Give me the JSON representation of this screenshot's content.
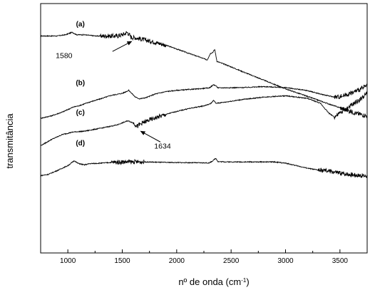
{
  "chart_data": {
    "type": "line",
    "xlabel": "nº de onda (cm",
    "xlabel_sup": "-1",
    "xlabel_end": ")",
    "ylabel": "transmitância",
    "xlim": [
      750,
      3750
    ],
    "ylim": [
      0,
      100
    ],
    "xticks": [
      1000,
      1500,
      2000,
      2500,
      3000,
      3500
    ],
    "xtick_labels": [
      "1000",
      "1500",
      "2000",
      "2500",
      "3000",
      "3500"
    ],
    "grid": false,
    "series": [
      {
        "name": "(a)",
        "points": [
          [
            750,
            87
          ],
          [
            800,
            87
          ],
          [
            900,
            87
          ],
          [
            980,
            87.5
          ],
          [
            1040,
            88.5
          ],
          [
            1080,
            87.5
          ],
          [
            1150,
            87.5
          ],
          [
            1250,
            87
          ],
          [
            1350,
            87
          ],
          [
            1450,
            87
          ],
          [
            1520,
            87.8
          ],
          [
            1545,
            88.5
          ],
          [
            1565,
            87.5
          ],
          [
            1580,
            86.5
          ],
          [
            1620,
            86.3
          ],
          [
            1700,
            85.5
          ],
          [
            1800,
            84.5
          ],
          [
            1900,
            83.3
          ],
          [
            2000,
            81.8
          ],
          [
            2100,
            80.2
          ],
          [
            2200,
            78.7
          ],
          [
            2280,
            77.4
          ],
          [
            2310,
            80
          ],
          [
            2330,
            80.4
          ],
          [
            2350,
            81.6
          ],
          [
            2370,
            76.8
          ],
          [
            2450,
            75.5
          ],
          [
            2600,
            72.8
          ],
          [
            2800,
            69.3
          ],
          [
            3000,
            65.8
          ],
          [
            3200,
            62.8
          ],
          [
            3400,
            59.7
          ],
          [
            3550,
            57.5
          ],
          [
            3650,
            56
          ],
          [
            3750,
            55
          ]
        ],
        "noise_ranges": [
          [
            1300,
            1650
          ],
          [
            1650,
            1900
          ],
          [
            3500,
            3750
          ]
        ],
        "label_x": 1115,
        "label_y": 90.8
      },
      {
        "name": "(b)",
        "points": [
          [
            750,
            54
          ],
          [
            850,
            55
          ],
          [
            950,
            56.5
          ],
          [
            1050,
            58.5
          ],
          [
            1100,
            59
          ],
          [
            1200,
            60.5
          ],
          [
            1300,
            61.8
          ],
          [
            1400,
            63.2
          ],
          [
            1500,
            64
          ],
          [
            1560,
            65.2
          ],
          [
            1580,
            64.3
          ],
          [
            1620,
            62.5
          ],
          [
            1660,
            61.8
          ],
          [
            1720,
            62.3
          ],
          [
            1800,
            63.7
          ],
          [
            1900,
            64.7
          ],
          [
            2000,
            65.2
          ],
          [
            2200,
            65.8
          ],
          [
            2300,
            66.2
          ],
          [
            2340,
            67.5
          ],
          [
            2360,
            67
          ],
          [
            2380,
            66.2
          ],
          [
            2600,
            66.3
          ],
          [
            2800,
            66.7
          ],
          [
            3000,
            66.3
          ],
          [
            3200,
            65.1
          ],
          [
            3350,
            63.4
          ],
          [
            3450,
            62.5
          ],
          [
            3500,
            62.7
          ],
          [
            3600,
            64
          ],
          [
            3700,
            66
          ],
          [
            3750,
            67
          ]
        ],
        "noise_ranges": [
          [
            3450,
            3750
          ]
        ],
        "label_x": 1115,
        "label_y": 67.3
      },
      {
        "name": "(c)",
        "points": [
          [
            750,
            43
          ],
          [
            850,
            45.5
          ],
          [
            950,
            47.5
          ],
          [
            1050,
            48.5
          ],
          [
            1150,
            48.8
          ],
          [
            1300,
            50
          ],
          [
            1450,
            51.3
          ],
          [
            1550,
            53
          ],
          [
            1600,
            52.2
          ],
          [
            1640,
            50.8
          ],
          [
            1680,
            52
          ],
          [
            1750,
            53.3
          ],
          [
            1850,
            54.8
          ],
          [
            1950,
            56.2
          ],
          [
            2100,
            57.8
          ],
          [
            2250,
            59
          ],
          [
            2310,
            59.8
          ],
          [
            2340,
            61.2
          ],
          [
            2360,
            60
          ],
          [
            2450,
            60.5
          ],
          [
            2600,
            61.5
          ],
          [
            2800,
            62.5
          ],
          [
            3000,
            63
          ],
          [
            3200,
            62
          ],
          [
            3320,
            60
          ],
          [
            3400,
            56
          ],
          [
            3450,
            54.5
          ],
          [
            3500,
            56
          ],
          [
            3600,
            59
          ],
          [
            3700,
            62
          ],
          [
            3750,
            64
          ]
        ],
        "noise_ranges": [
          [
            1600,
            1900
          ],
          [
            3450,
            3750
          ]
        ],
        "label_x": 1115,
        "label_y": 55.5
      },
      {
        "name": "(d)",
        "points": [
          [
            750,
            31
          ],
          [
            820,
            31.5
          ],
          [
            900,
            33
          ],
          [
            1000,
            35
          ],
          [
            1060,
            37
          ],
          [
            1090,
            36
          ],
          [
            1150,
            35.3
          ],
          [
            1200,
            35.8
          ],
          [
            1300,
            36
          ],
          [
            1400,
            36.3
          ],
          [
            1500,
            36.5
          ],
          [
            1700,
            36.5
          ],
          [
            1900,
            36.3
          ],
          [
            2100,
            36.2
          ],
          [
            2300,
            36.1
          ],
          [
            2330,
            36.9
          ],
          [
            2360,
            38
          ],
          [
            2380,
            36.6
          ],
          [
            2500,
            36.5
          ],
          [
            2700,
            36.5
          ],
          [
            2900,
            36.5
          ],
          [
            3000,
            36
          ],
          [
            3100,
            35
          ],
          [
            3200,
            34
          ],
          [
            3300,
            33.2
          ],
          [
            3400,
            32.8
          ],
          [
            3500,
            32
          ],
          [
            3650,
            31.2
          ],
          [
            3750,
            30.8
          ]
        ],
        "noise_ranges": [
          [
            1400,
            1700
          ],
          [
            3300,
            3750
          ]
        ],
        "label_x": 1115,
        "label_y": 43.2
      }
    ],
    "annotations": [
      {
        "text": "1580",
        "tx": 965,
        "ty": 78.2,
        "ax_from": 1410,
        "ay_from": 80.8,
        "ax_to": 1585,
        "ay_to": 84.8
      },
      {
        "text": "1634",
        "tx": 1870,
        "ty": 41.8,
        "ax_from": 1850,
        "ay_from": 44.5,
        "ax_to": 1670,
        "ay_to": 48.8
      }
    ]
  }
}
